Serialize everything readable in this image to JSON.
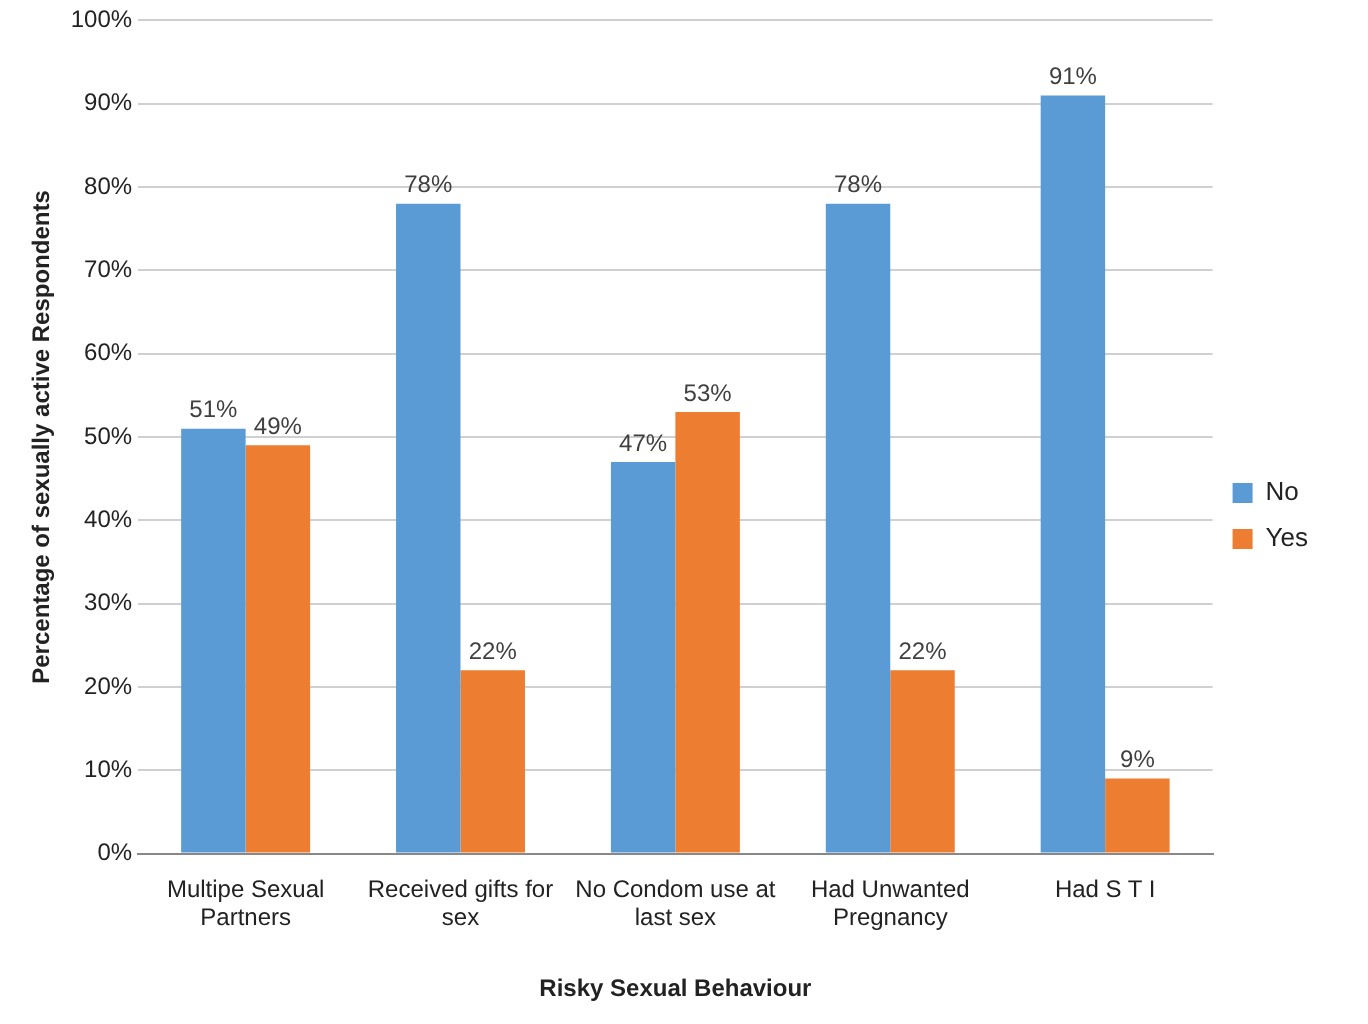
{
  "chart_data": {
    "type": "bar",
    "xlabel": "Risky Sexual Behaviour",
    "ylabel": "Percentage of sexually active Respondents",
    "categories": [
      "Multipe Sexual Partners",
      "Received gifts for sex",
      "No Condom use at last sex",
      "Had Unwanted Pregnancy",
      "Had S T I"
    ],
    "series": [
      {
        "name": "No",
        "color": "#5b9bd5",
        "values": [
          51,
          78,
          47,
          78,
          91
        ],
        "value_labels": [
          "51%",
          "78%",
          "47%",
          "78%",
          "91%"
        ]
      },
      {
        "name": "Yes",
        "color": "#ed7d31",
        "values": [
          49,
          22,
          53,
          22,
          9
        ],
        "value_labels": [
          "49%",
          "22%",
          "53%",
          "22%",
          "9%"
        ]
      }
    ],
    "ylim": [
      0,
      100
    ],
    "yticks": [
      {
        "value": 0,
        "label": "0%"
      },
      {
        "value": 10,
        "label": "10%"
      },
      {
        "value": 20,
        "label": "20%"
      },
      {
        "value": 30,
        "label": "30%"
      },
      {
        "value": 40,
        "label": "40%"
      },
      {
        "value": 50,
        "label": "50%"
      },
      {
        "value": 60,
        "label": "60%"
      },
      {
        "value": 70,
        "label": "70%"
      },
      {
        "value": 80,
        "label": "80%"
      },
      {
        "value": 90,
        "label": "90%"
      },
      {
        "value": 100,
        "label": "100%"
      }
    ],
    "grid": "y",
    "legend": "right"
  }
}
